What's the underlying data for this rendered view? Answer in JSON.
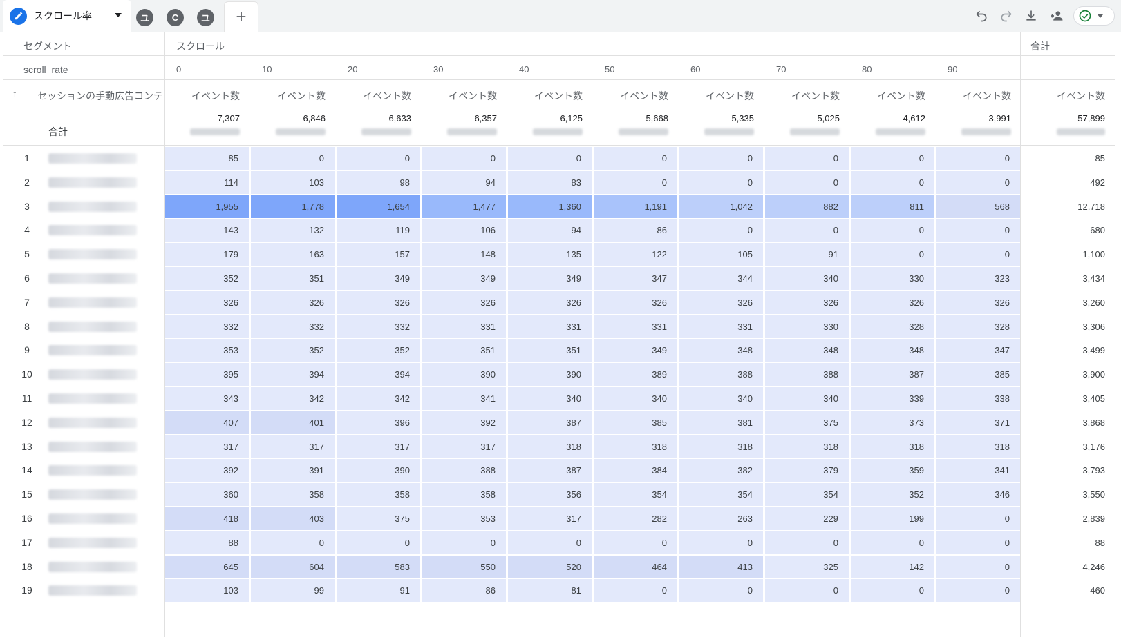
{
  "tabs": {
    "active_label": "スクロール率",
    "segment_circles": [
      "ユ",
      "C",
      "ユ"
    ],
    "add_label": "+"
  },
  "toolbar": {
    "icons": [
      "undo-icon",
      "redo-icon",
      "download-icon",
      "share-icon",
      "check-circle-icon"
    ]
  },
  "table": {
    "segment_header": "セグメント",
    "scroll_header": "スクロール",
    "total_header": "合計",
    "dimension_label": "scroll_rate",
    "scroll_values": [
      "0",
      "10",
      "20",
      "30",
      "40",
      "50",
      "60",
      "70",
      "80",
      "90"
    ],
    "sort_arrow": "↑",
    "dimension_column_header": "セッションの手動広告コンテンツ",
    "metric_header": "イベント数",
    "totals_label": "合計",
    "totals": [
      "7,307",
      "6,846",
      "6,633",
      "6,357",
      "6,125",
      "5,668",
      "5,335",
      "5,025",
      "4,612",
      "3,991"
    ],
    "grand_total": "57,899",
    "rows": [
      {
        "n": "1",
        "v": [
          "85",
          "0",
          "0",
          "0",
          "0",
          "0",
          "0",
          "0",
          "0",
          "0"
        ],
        "t": "85"
      },
      {
        "n": "2",
        "v": [
          "114",
          "103",
          "98",
          "94",
          "83",
          "0",
          "0",
          "0",
          "0",
          "0"
        ],
        "t": "492"
      },
      {
        "n": "3",
        "v": [
          "1,955",
          "1,778",
          "1,654",
          "1,477",
          "1,360",
          "1,191",
          "1,042",
          "882",
          "811",
          "568"
        ],
        "t": "12,718"
      },
      {
        "n": "4",
        "v": [
          "143",
          "132",
          "119",
          "106",
          "94",
          "86",
          "0",
          "0",
          "0",
          "0"
        ],
        "t": "680"
      },
      {
        "n": "5",
        "v": [
          "179",
          "163",
          "157",
          "148",
          "135",
          "122",
          "105",
          "91",
          "0",
          "0"
        ],
        "t": "1,100"
      },
      {
        "n": "6",
        "v": [
          "352",
          "351",
          "349",
          "349",
          "349",
          "347",
          "344",
          "340",
          "330",
          "323"
        ],
        "t": "3,434"
      },
      {
        "n": "7",
        "v": [
          "326",
          "326",
          "326",
          "326",
          "326",
          "326",
          "326",
          "326",
          "326",
          "326"
        ],
        "t": "3,260"
      },
      {
        "n": "8",
        "v": [
          "332",
          "332",
          "332",
          "331",
          "331",
          "331",
          "331",
          "330",
          "328",
          "328"
        ],
        "t": "3,306"
      },
      {
        "n": "9",
        "v": [
          "353",
          "352",
          "352",
          "351",
          "351",
          "349",
          "348",
          "348",
          "348",
          "347"
        ],
        "t": "3,499"
      },
      {
        "n": "10",
        "v": [
          "395",
          "394",
          "394",
          "390",
          "390",
          "389",
          "388",
          "388",
          "387",
          "385"
        ],
        "t": "3,900"
      },
      {
        "n": "11",
        "v": [
          "343",
          "342",
          "342",
          "341",
          "340",
          "340",
          "340",
          "340",
          "339",
          "338"
        ],
        "t": "3,405"
      },
      {
        "n": "12",
        "v": [
          "407",
          "401",
          "396",
          "392",
          "387",
          "385",
          "381",
          "375",
          "373",
          "371"
        ],
        "t": "3,868"
      },
      {
        "n": "13",
        "v": [
          "317",
          "317",
          "317",
          "317",
          "318",
          "318",
          "318",
          "318",
          "318",
          "318"
        ],
        "t": "3,176"
      },
      {
        "n": "14",
        "v": [
          "392",
          "391",
          "390",
          "388",
          "387",
          "384",
          "382",
          "379",
          "359",
          "341"
        ],
        "t": "3,793"
      },
      {
        "n": "15",
        "v": [
          "360",
          "358",
          "358",
          "358",
          "356",
          "354",
          "354",
          "354",
          "352",
          "346"
        ],
        "t": "3,550"
      },
      {
        "n": "16",
        "v": [
          "418",
          "403",
          "375",
          "353",
          "317",
          "282",
          "263",
          "229",
          "199",
          "0"
        ],
        "t": "2,839"
      },
      {
        "n": "17",
        "v": [
          "88",
          "0",
          "0",
          "0",
          "0",
          "0",
          "0",
          "0",
          "0",
          "0"
        ],
        "t": "88"
      },
      {
        "n": "18",
        "v": [
          "645",
          "604",
          "583",
          "550",
          "520",
          "464",
          "413",
          "325",
          "142",
          "0"
        ],
        "t": "4,246"
      },
      {
        "n": "19",
        "v": [
          "103",
          "99",
          "91",
          "86",
          "81",
          "0",
          "0",
          "0",
          "0",
          "0"
        ],
        "t": "460"
      }
    ]
  },
  "colors": {
    "accent": "#1a73e8",
    "heat_light": "#e3e9fb",
    "heat_mid": "#d5defa",
    "heat_strong": "#9ab8fb",
    "heat_max": "#7ea6fa"
  }
}
